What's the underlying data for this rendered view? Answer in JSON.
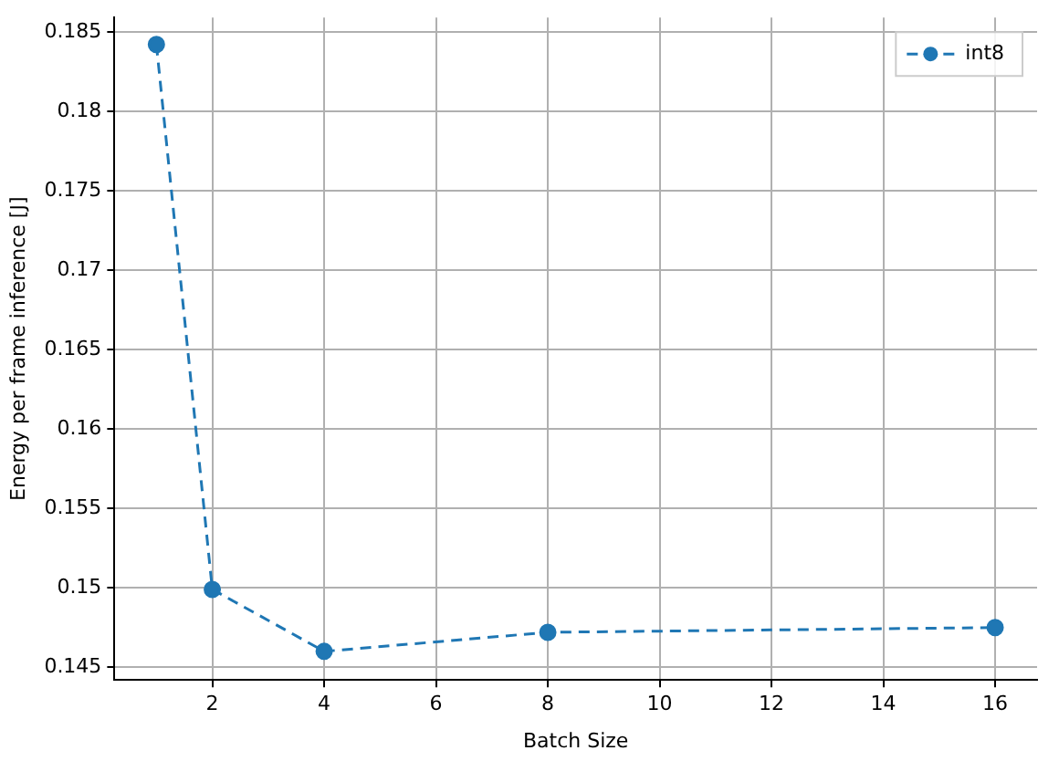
{
  "chart_data": {
    "type": "line",
    "xlabel": "Batch Size",
    "ylabel": "Energy per frame inference [J]",
    "x": [
      1,
      2,
      4,
      8,
      16
    ],
    "series": [
      {
        "name": "int8",
        "color": "#1f77b4",
        "values": [
          0.1842,
          0.1499,
          0.146,
          0.1472,
          0.1475
        ]
      }
    ],
    "xlim": [
      0.25,
      16.75
    ],
    "xticks": [
      2,
      4,
      6,
      8,
      10,
      12,
      14,
      16
    ],
    "ylim": [
      0.1442,
      0.1859
    ],
    "yticks": [
      0.145,
      0.15,
      0.155,
      0.16,
      0.165,
      0.17,
      0.175,
      0.18,
      0.185
    ],
    "grid": true,
    "legend": "top right",
    "marker": "circle",
    "line_style": "dashed"
  }
}
